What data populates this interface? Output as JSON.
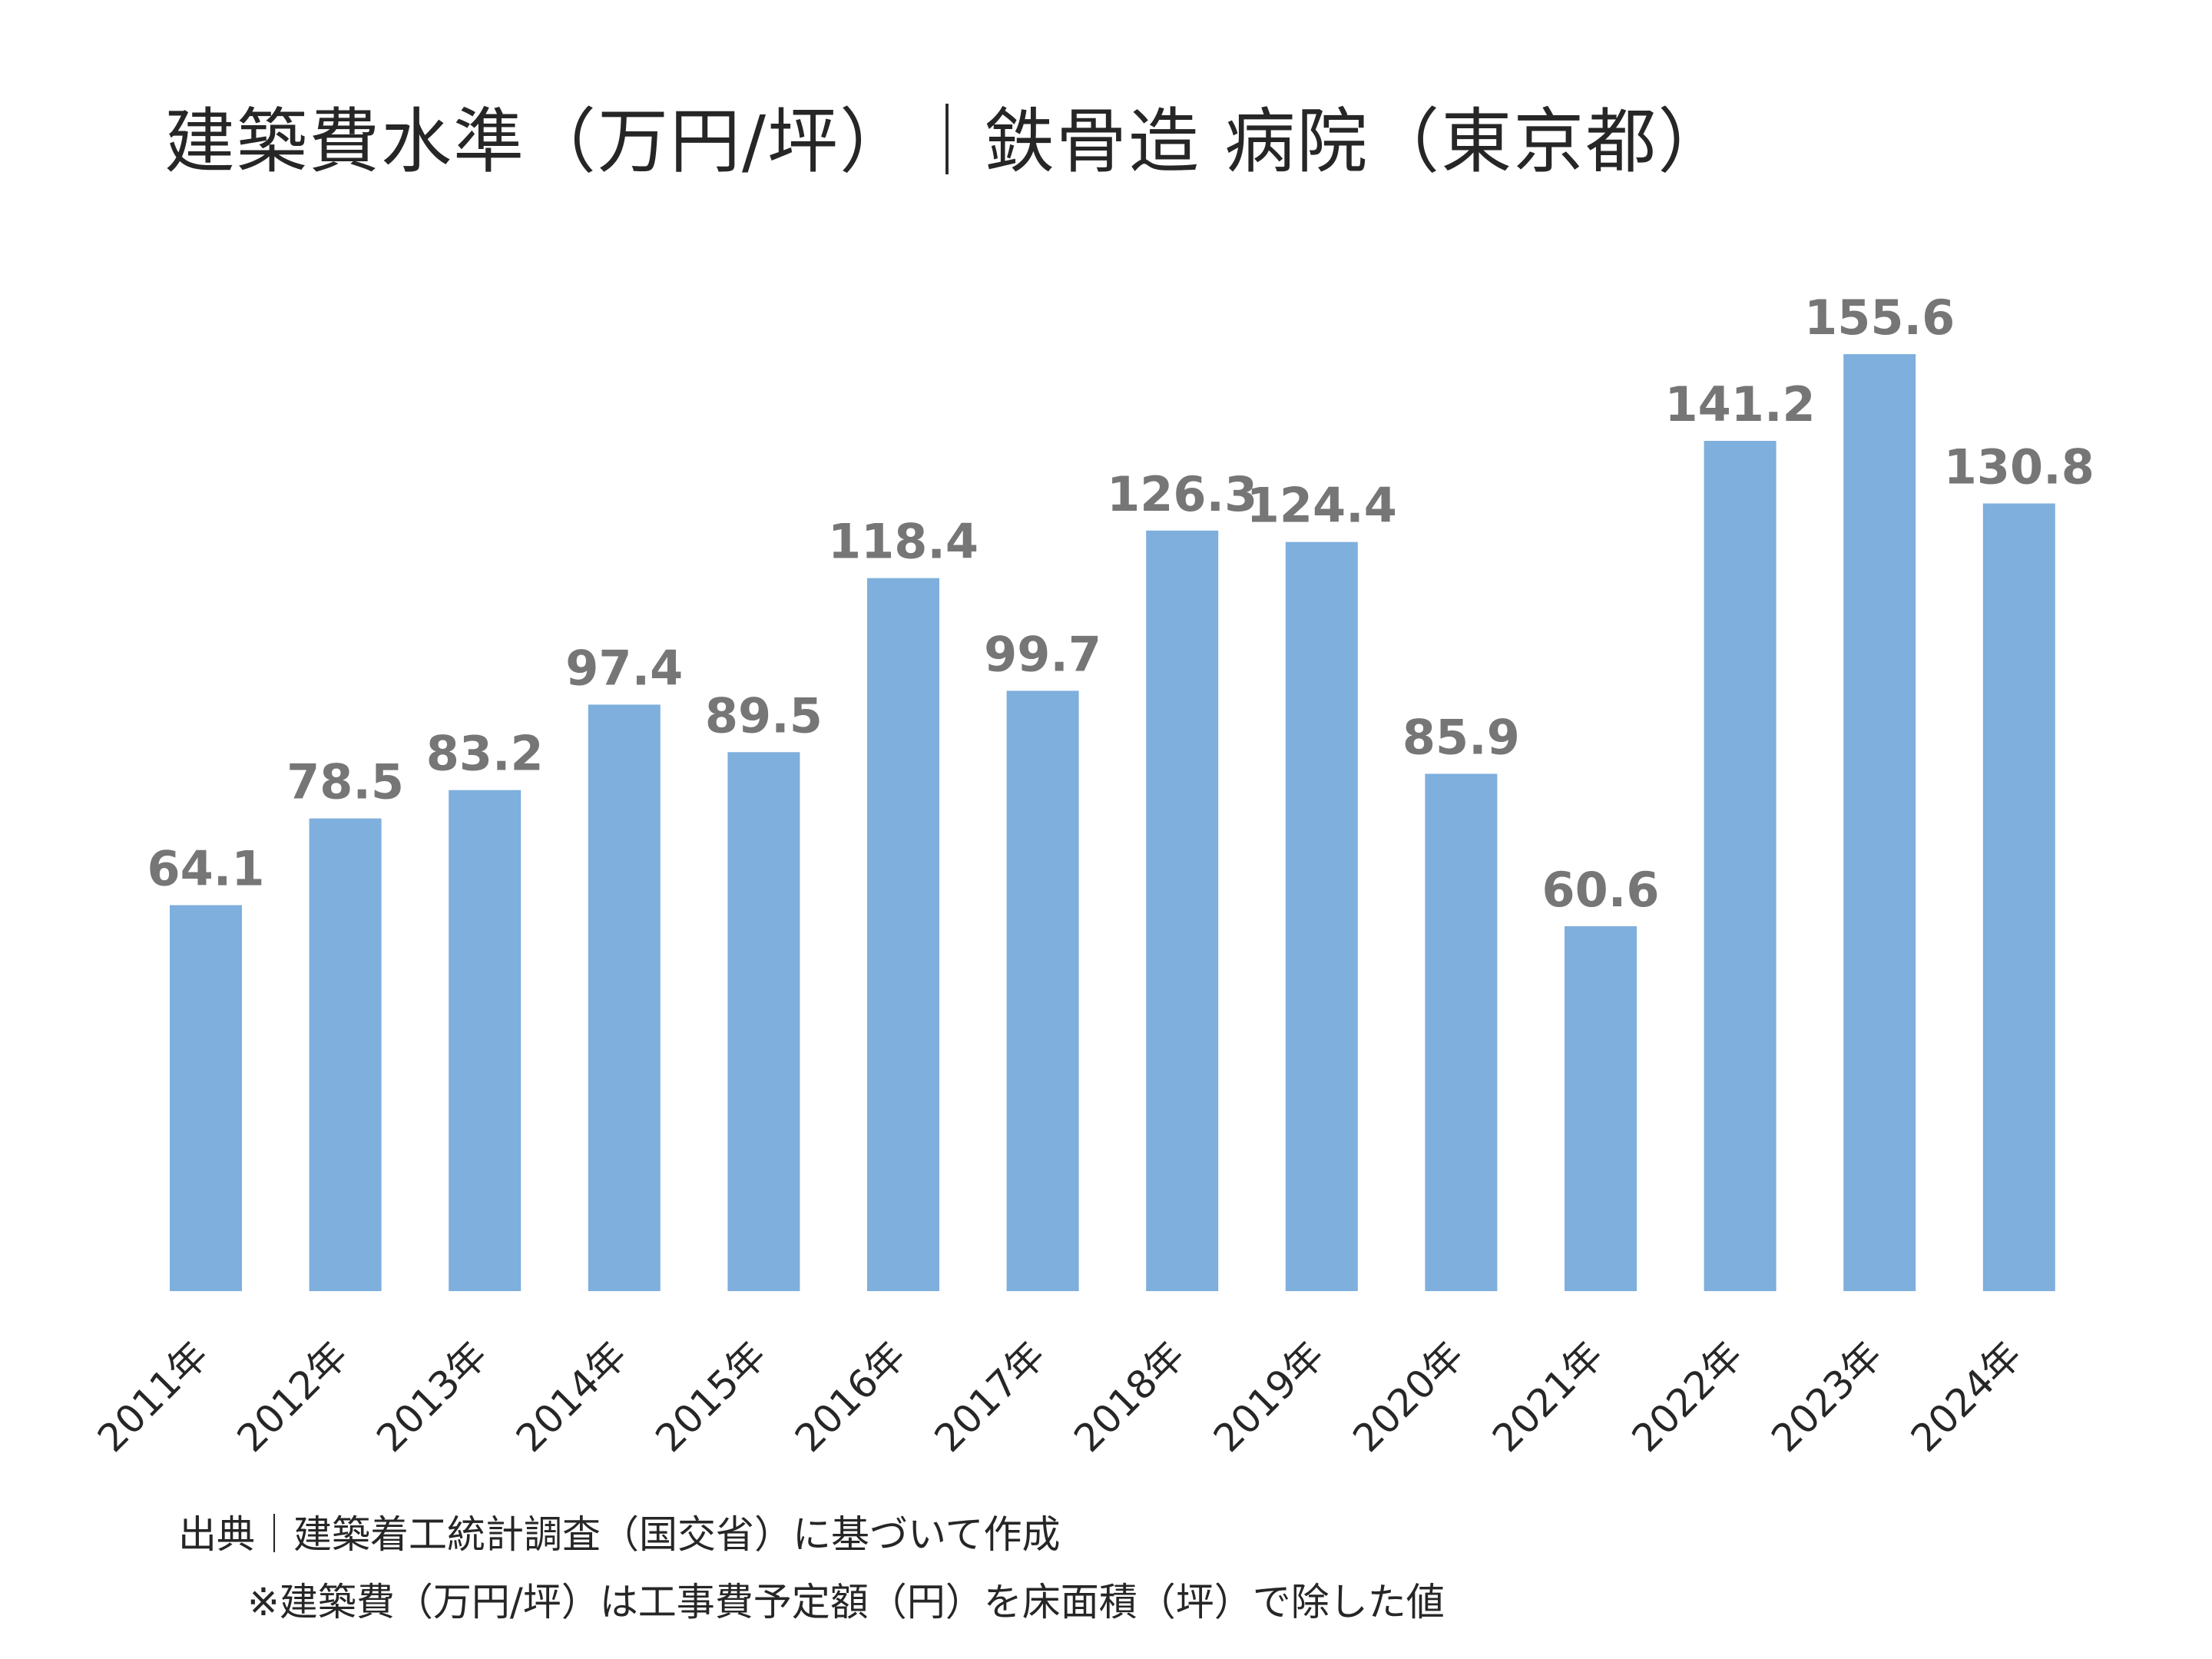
{
  "colors": {
    "bar": "#7eafdd",
    "value_label": "#767676",
    "text": "#262626"
  },
  "chart_data": {
    "type": "bar",
    "title": "建築費水準（万円/坪）｜鉄骨造 病院（東京都）",
    "categories": [
      "2011年",
      "2012年",
      "2013年",
      "2014年",
      "2015年",
      "2016年",
      "2017年",
      "2018年",
      "2019年",
      "2020年",
      "2021年",
      "2022年",
      "2023年",
      "2024年"
    ],
    "values": [
      64.1,
      78.5,
      83.2,
      97.4,
      89.5,
      118.4,
      99.7,
      126.3,
      124.4,
      85.9,
      60.6,
      141.2,
      155.6,
      130.8
    ],
    "value_labels": [
      "64.1",
      "78.5",
      "83.2",
      "97.4",
      "89.5",
      "118.4",
      "99.7",
      "126.3",
      "124.4",
      "85.9",
      "60.6",
      "141.2",
      "155.6",
      "130.8"
    ],
    "ylim": [
      0,
      160
    ],
    "grid": false,
    "legend": "none",
    "xlabel": "",
    "ylabel": ""
  },
  "footnotes": {
    "source": "出典｜建築着工統計調査（国交省）に基づいて作成",
    "note": "※建築費（万円/坪）は工事費予定額（円）を床面積（坪）で除した値"
  }
}
